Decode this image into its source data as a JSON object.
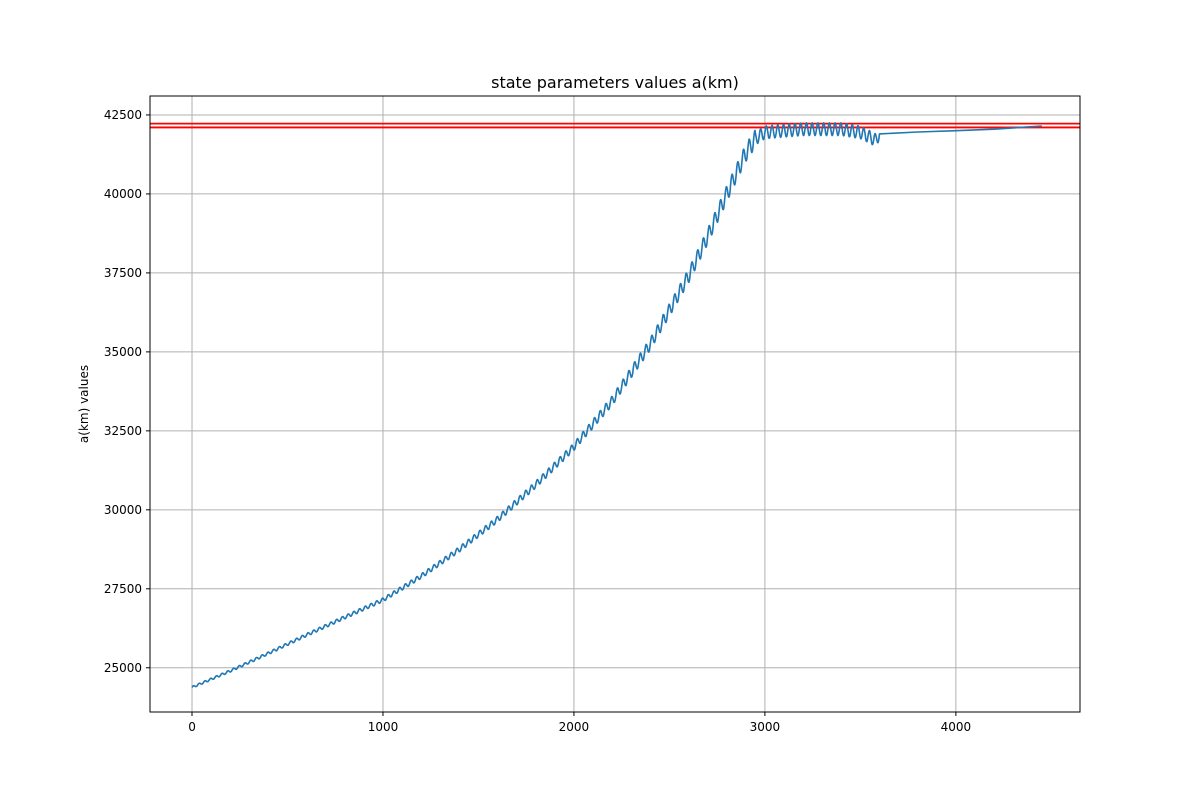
{
  "chart_data": {
    "type": "line",
    "title": "state parameters values a(km)",
    "xlabel": "",
    "ylabel": "a(km) values",
    "xlim": [
      -220,
      4650
    ],
    "ylim": [
      23600,
      43100
    ],
    "xticks": [
      0,
      1000,
      2000,
      3000,
      4000
    ],
    "yticks": [
      25000,
      27500,
      30000,
      32500,
      35000,
      37500,
      40000,
      42500
    ],
    "grid": true,
    "hlines": [
      {
        "y": 42225,
        "color": "#ff0000"
      },
      {
        "y": 42105,
        "color": "#ff0000"
      }
    ],
    "series": [
      {
        "color": "#1f77b4",
        "x": [
          0,
          200,
          400,
          600,
          800,
          1000,
          1200,
          1400,
          1600,
          1800,
          2000,
          2200,
          2400,
          2600,
          2700,
          2800,
          2900,
          2950,
          3000,
          3100,
          3200,
          3300,
          3400,
          3500,
          3550,
          3580,
          3600,
          3800,
          4000,
          4200,
          4450
        ],
        "y": [
          24380,
          24900,
          25460,
          26040,
          26600,
          27150,
          27900,
          28750,
          29700,
          30800,
          32000,
          33450,
          35250,
          37400,
          38650,
          40000,
          41300,
          41750,
          41950,
          42000,
          42050,
          42050,
          42050,
          41950,
          41800,
          41700,
          41900,
          41960,
          42000,
          42050,
          42150
        ]
      }
    ]
  },
  "colors": {
    "line": "#1f77b4",
    "hline": "#ff0000",
    "grid": "#b0b0b0"
  }
}
